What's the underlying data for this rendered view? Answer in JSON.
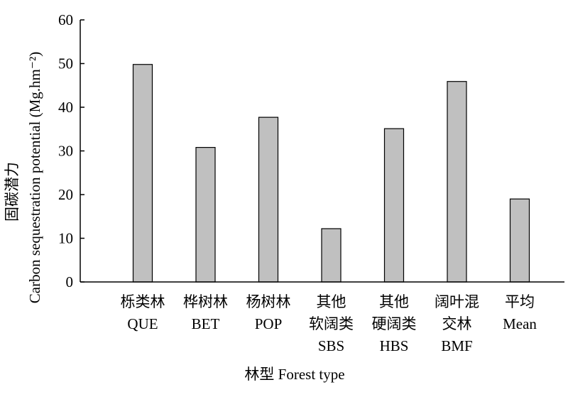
{
  "chart_data": {
    "type": "bar",
    "categories": [
      {
        "id": "QUE",
        "lines": [
          "栎类林",
          "QUE"
        ]
      },
      {
        "id": "BET",
        "lines": [
          "桦树林",
          "BET"
        ]
      },
      {
        "id": "POP",
        "lines": [
          "杨树林",
          "POP"
        ]
      },
      {
        "id": "SBS",
        "lines": [
          "其他",
          "软阔类",
          "SBS"
        ]
      },
      {
        "id": "HBS",
        "lines": [
          "其他",
          "硬阔类",
          "HBS"
        ]
      },
      {
        "id": "BMF",
        "lines": [
          "阔叶混",
          "交林",
          "BMF"
        ]
      },
      {
        "id": "Mean",
        "lines": [
          "平均",
          "Mean"
        ]
      }
    ],
    "values": [
      49.8,
      30.8,
      37.7,
      12.2,
      35.1,
      45.9,
      19.0
    ],
    "ylim": [
      0,
      60
    ],
    "yticks": [
      0,
      10,
      20,
      30,
      40,
      50,
      60
    ],
    "xlabel": "林型  Forest type",
    "ylabel_lines": [
      "固碳潜力",
      "Carbon sequestration potential (Mg.hm⁻²)"
    ],
    "bar_color": "#c0c0c0",
    "bar_stroke": "#000000",
    "grid": false,
    "legend": "none"
  }
}
